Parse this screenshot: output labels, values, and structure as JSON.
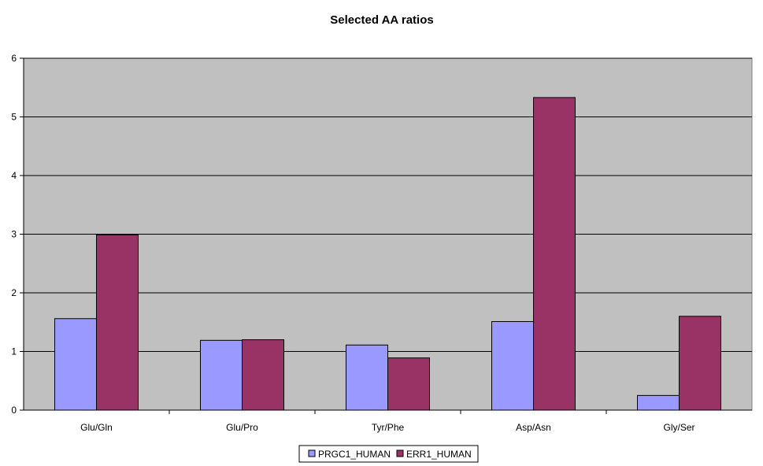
{
  "chart_data": {
    "type": "bar",
    "title": "Selected AA ratios",
    "xlabel": "",
    "ylabel": "",
    "categories": [
      "Glu/Gln",
      "Glu/Pro",
      "Tyr/Phe",
      "Asp/Asn",
      "Gly/Ser"
    ],
    "series": [
      {
        "name": "PRGC1_HUMAN",
        "color": "#9999ff",
        "values": [
          1.56,
          1.19,
          1.11,
          1.51,
          0.25
        ]
      },
      {
        "name": "ERR1_HUMAN",
        "color": "#993366",
        "values": [
          2.99,
          1.2,
          0.89,
          5.33,
          1.6
        ]
      }
    ],
    "ylim": [
      0,
      6
    ],
    "yticks": [
      "0",
      "1",
      "2",
      "3",
      "4",
      "5",
      "6"
    ],
    "grid": true,
    "plot_background": "#c0c0c0",
    "legend_position": "bottom"
  }
}
